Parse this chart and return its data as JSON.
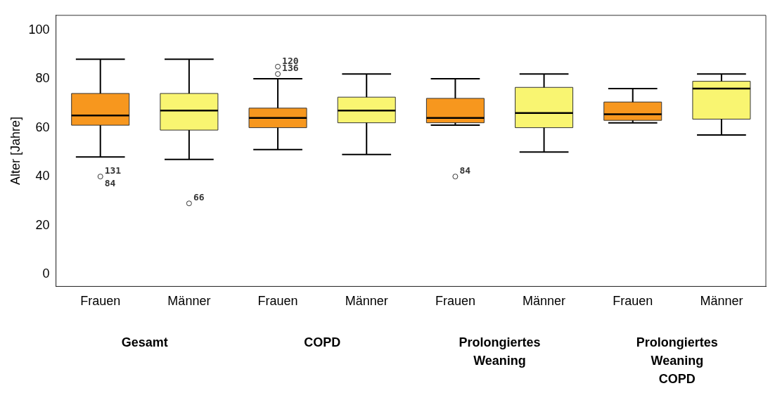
{
  "chart_data": {
    "type": "box",
    "ylabel": "Alter [Jahre]",
    "categories": [
      "Frauen",
      "Männer",
      "Frauen",
      "Männer",
      "Frauen",
      "Männer",
      "Frauen",
      "Männer"
    ],
    "colors": [
      "#f7971e",
      "#f9f571",
      "#f7971e",
      "#f9f571",
      "#f7971e",
      "#f9f571",
      "#f7971e",
      "#f9f571"
    ],
    "boxes": [
      {
        "low": 48,
        "q1": 61,
        "median": 65,
        "q3": 74,
        "high": 88,
        "outliers": [
          40
        ]
      },
      {
        "low": 47,
        "q1": 59,
        "median": 67,
        "q3": 74,
        "high": 88,
        "outliers": [
          29
        ]
      },
      {
        "low": 51,
        "q1": 60,
        "median": 64,
        "q3": 68,
        "high": 80,
        "outliers": [
          85,
          82
        ]
      },
      {
        "low": 49,
        "q1": 62,
        "median": 67,
        "q3": 72.5,
        "high": 82
      },
      {
        "low": 61,
        "q1": 62,
        "median": 64,
        "q3": 72,
        "high": 80,
        "outliers": [
          40
        ]
      },
      {
        "low": 50,
        "q1": 60,
        "median": 66,
        "q3": 76.5,
        "high": 82
      },
      {
        "low": 62,
        "q1": 63,
        "median": 65.5,
        "q3": 70.5,
        "high": 76
      },
      {
        "low": 57,
        "q1": 63.5,
        "median": 76,
        "q3": 79,
        "high": 82
      }
    ],
    "ylim": [
      -5,
      106
    ],
    "yticks": [
      0,
      20,
      40,
      60,
      80,
      100
    ],
    "grid": false,
    "legend": false,
    "annotations": [
      "131",
      "84",
      "66",
      "120",
      "136",
      "84",
      "Gesamt",
      "COPD",
      "Prolongiertes Weaning",
      "Prolongiertes Weaning COPD"
    ]
  }
}
